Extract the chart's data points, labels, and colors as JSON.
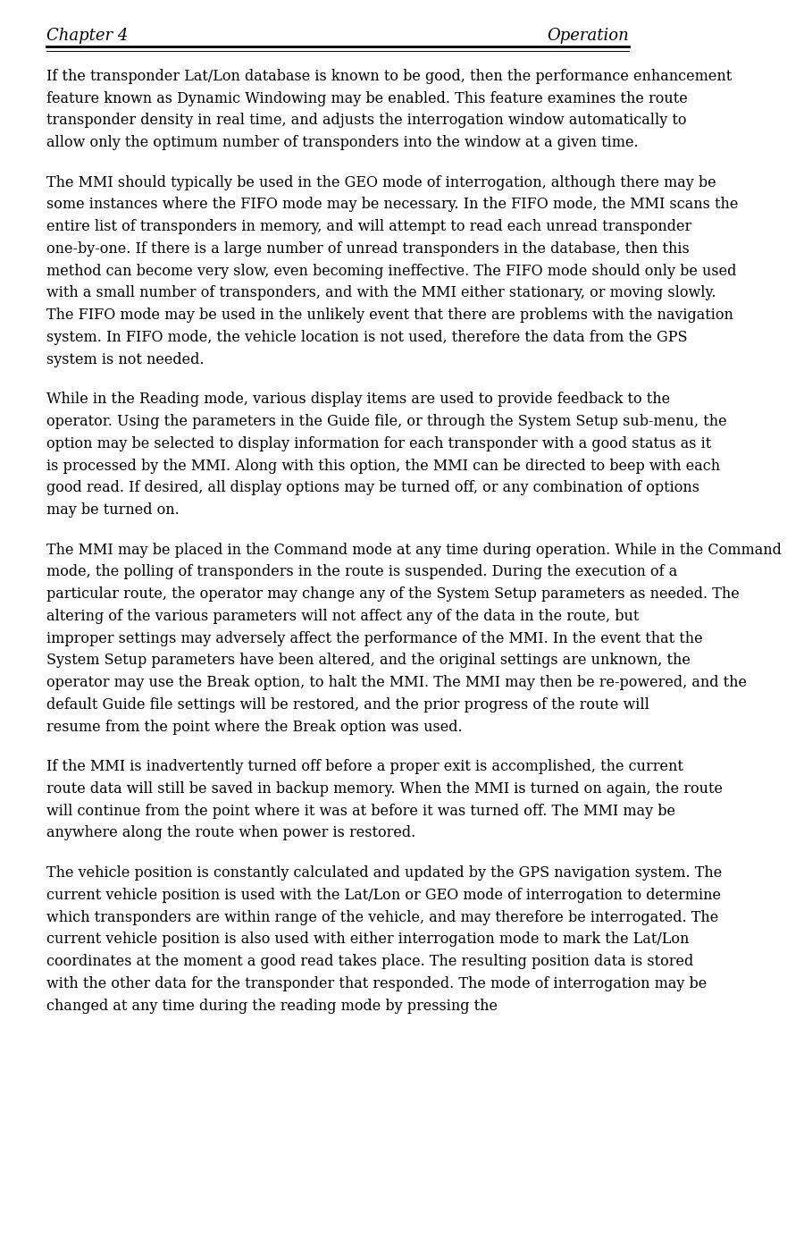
{
  "header_left": "Chapter 4",
  "header_right": "Operation",
  "background_color": "#ffffff",
  "text_color": "#000000",
  "header_font_size": 13,
  "body_font_size": 11.5,
  "paragraphs": [
    "If  the  transponder  Lat/Lon  database  is  known  to  be  good,  then  the  performance enhancement  feature  known  as  Dynamic  Windowing  may  be  enabled.   This  feature examines the route transponder density in real time, and adjusts the interrogation window automatically  to  allow  only  the  optimum  number  of  transponders  into  the  window  at  a given time.",
    "The MMI should typically be used in the GEO mode of interrogation, although there may be some instances where the FIFO mode may be necessary.  In the FIFO mode, the MMI scans  the  entire  list  of  transponders  in  memory,  and  will  attempt  to  read  each  unread transponder one-by-one. If there is a large number of unread transponders in the database, then  this  method  can  become  very  slow,  even  becoming  ineffective.   The  FIFO  mode should  only  be  used  with  a  small  number  of  transponders,  and  with  the  MMI  either stationary,  or  moving  slowly.   The  FIFO  mode  may  be  used  in  the  unlikely  event  that there are problems with the navigation system.  In FIFO mode, the vehicle location is not used, therefore the data from the GPS system is not needed.",
    "While  in  the  Reading  mode,  various  display  items  are  used  to  provide  feedback  to  the operator.  Using the parameters in the Guide file, or through the System Setup sub-menu, the option may be selected to display information for each transponder with a good status as it is processed by the MMI.   Along with this option,  the MMI can be directed to beep with each good read.  If desired, all display options may be turned off, or any combination of options may be turned on.",
    "The MMI may be placed in the Command mode at any time during operation.  While in the Command mode,  the polling of transponders in the route is suspended.   During the execution  of  a  particular  route,  the  operator  may  change  any  of  the  System  Setup parameters as needed.  The altering of  the various parameters will not affect any of the data in the route, but improper settings may adversely affect the performance of the MMI. In the event that the System Setup parameters have been altered, and the original settings are  unknown,  the  operator  may  use  the  Break  option,  to  halt  the  MMI.   The  MMI  may then  be  re-powered,  and  the  default  Guide  file  settings  will  be  restored,  and  the  prior progress of the route will resume from the point where the Break option was used.",
    "If the MMI is inadvertently turned off before a proper exit is accomplished, the current route data will still be saved in backup memory.  When the MMI is turned on again, the route will continue from the point where it was at before it was turned off.  The MMI may be anywhere along the route when power is restored.",
    "The  vehicle  position is constantly calculated and updated by the GPS navigation system. The  current  vehicle  position  is  used  with  the  Lat/Lon  or  GEO  mode  of  interrogation  to determine  which  transponders  are  within  range  of  the  vehicle,  and  may  therefore  be interrogated.   The current vehicle position is also used with either interrogation mode to mark  the  Lat/Lon  coordinates  at  the  moment  a  good  read  takes  place.   The  resulting position data is stored with the other data for the transponder that responded.  The mode of  interrogation  may  be  changed  at  any  time  during  the  reading  mode  by  pressing  the"
  ]
}
